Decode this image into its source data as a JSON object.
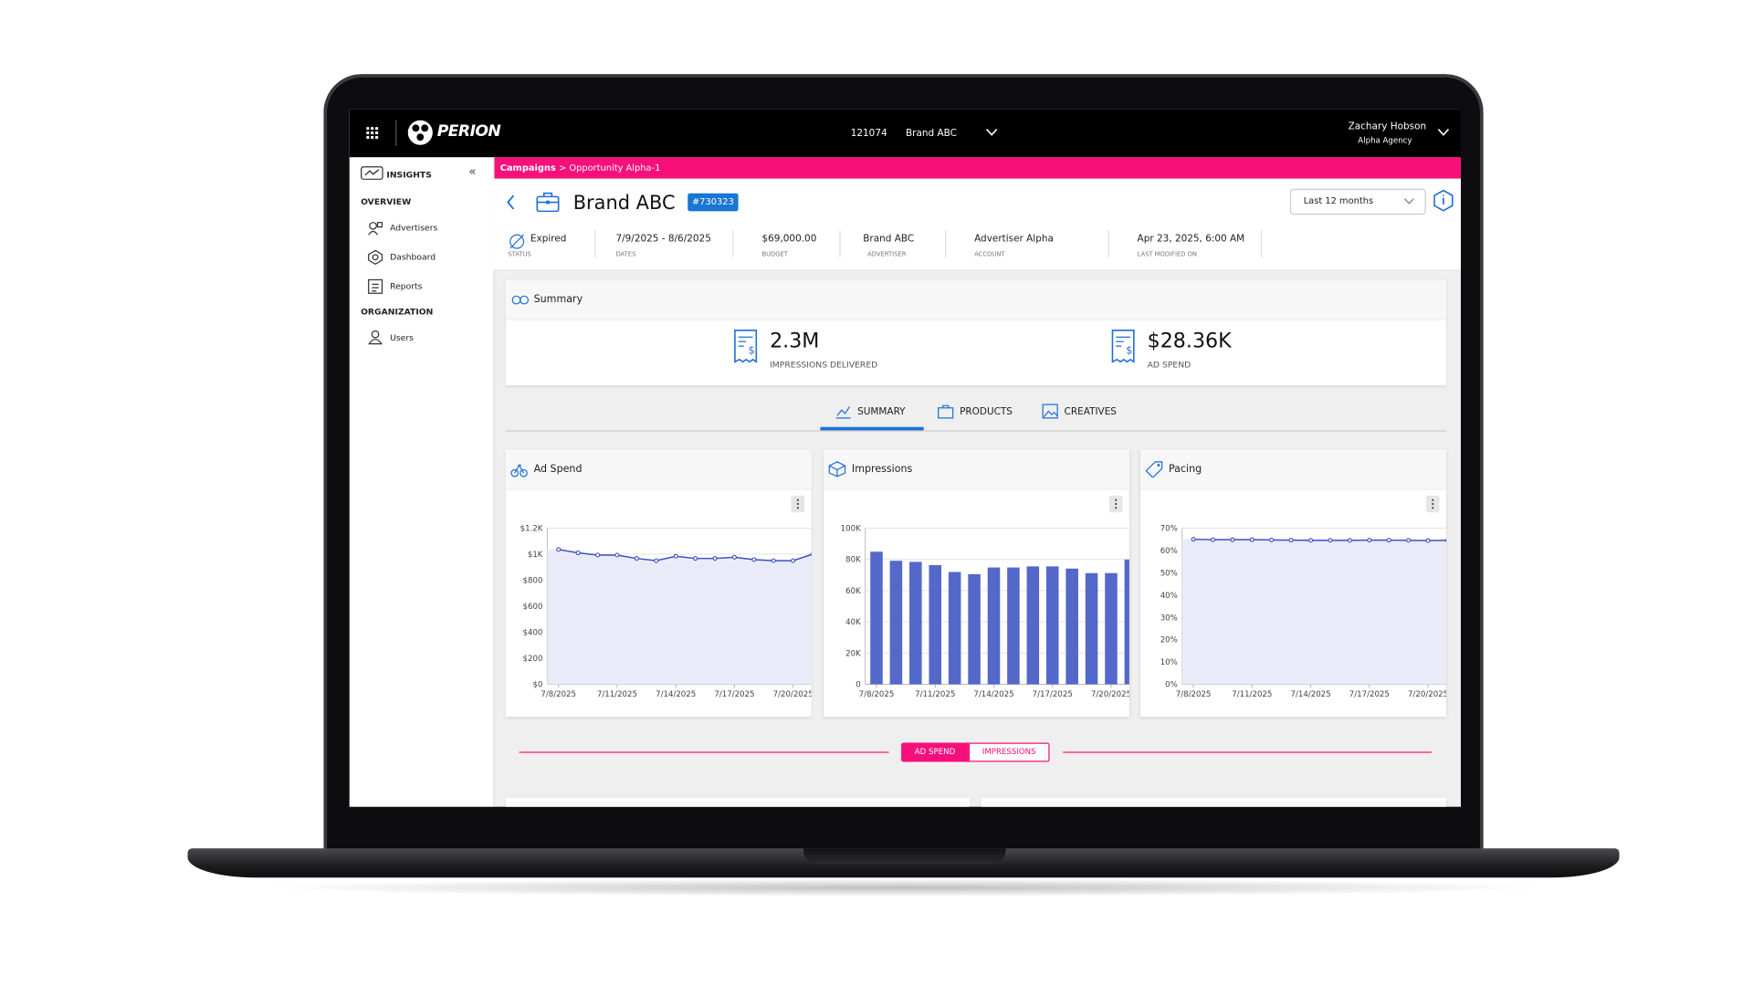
{
  "topbar": {
    "brand": "PERION",
    "account_id": "121074",
    "account_name": "Brand ABC",
    "user_name": "Zachary Hobson",
    "user_org": "Alpha Agency"
  },
  "breadcrumb": {
    "root": "Campaigns",
    "current": "> Opportunity Alpha-1"
  },
  "sidebar": {
    "title": "INSIGHTS",
    "sections": [
      {
        "heading": "OVERVIEW",
        "items": [
          "Advertisers",
          "Dashboard",
          "Reports"
        ]
      },
      {
        "heading": "ORGANIZATION",
        "items": [
          "Users"
        ]
      }
    ]
  },
  "header": {
    "title": "Brand ABC",
    "id_badge": "#730323",
    "date_range": "Last 12 months"
  },
  "details": [
    {
      "value": "Expired",
      "label": "STATUS"
    },
    {
      "value": "7/9/2025 - 8/6/2025",
      "label": "DATES"
    },
    {
      "value": "$69,000.00",
      "label": "BUDGET"
    },
    {
      "value": "Brand ABC",
      "label": "ADVERTISER"
    },
    {
      "value": "Advertiser Alpha",
      "label": "ACCOUNT"
    },
    {
      "value": "Apr 23, 2025, 6:00 AM",
      "label": "LAST MODIFIED ON"
    }
  ],
  "summary": {
    "title": "Summary",
    "kpis": [
      {
        "value": "2.3M",
        "label": "IMPRESSIONS DELIVERED"
      },
      {
        "value": "$28.36K",
        "label": "AD SPEND"
      }
    ]
  },
  "tabs": [
    "SUMMARY",
    "PRODUCTS",
    "CREATIVES"
  ],
  "chart_data": [
    {
      "type": "line",
      "title": "Ad Spend",
      "color": "#3a4fc0",
      "fill": "#e9ecf8",
      "grid": true,
      "categories": [
        "7/8/2025",
        null,
        null,
        "7/11/2025",
        null,
        null,
        "7/14/2025",
        null,
        null,
        "7/17/2025",
        null,
        null,
        "7/20/2025",
        null
      ],
      "values": [
        1036,
        1010,
        993,
        993,
        967,
        950,
        984,
        967,
        967,
        976,
        958,
        950,
        950,
        1000
      ],
      "ylim": [
        0,
        1200
      ],
      "yticks": [
        {
          "value": 0,
          "label": "$0"
        },
        {
          "value": 200,
          "label": "$200"
        },
        {
          "value": 400,
          "label": "$400"
        },
        {
          "value": 600,
          "label": "$600"
        },
        {
          "value": 800,
          "label": "$800"
        },
        {
          "value": 1000,
          "label": "$1K"
        },
        {
          "value": 1200,
          "label": "$1.2K"
        }
      ]
    },
    {
      "type": "bar",
      "title": "Impressions",
      "color": "#5468c9",
      "grid": true,
      "categories": [
        "7/8/2025",
        null,
        null,
        "7/11/2025",
        null,
        null,
        "7/14/2025",
        null,
        null,
        "7/17/2025",
        null,
        null,
        "7/20/2025",
        null
      ],
      "values": [
        84900,
        79100,
        78400,
        76300,
        71900,
        70500,
        74800,
        74800,
        75500,
        75500,
        74100,
        71200,
        71200,
        79900
      ],
      "ylim": [
        0,
        100000
      ],
      "yticks": [
        0,
        {
          "value": 20000,
          "label": "20K"
        },
        {
          "value": 40000,
          "label": "40K"
        },
        {
          "value": 60000,
          "label": "60K"
        },
        {
          "value": 80000,
          "label": "80K"
        },
        {
          "value": 100000,
          "label": "100K"
        }
      ]
    },
    {
      "type": "line",
      "title": "Pacing",
      "color": "#3a4fc0",
      "fill": "#e9ecf8",
      "grid": true,
      "categories": [
        "7/8/2025",
        null,
        null,
        "7/11/2025",
        null,
        null,
        "7/14/2025",
        null,
        null,
        "7/17/2025",
        null,
        null,
        "7/20/2025",
        null
      ],
      "values": [
        65.0,
        64.8,
        64.8,
        64.8,
        64.7,
        64.6,
        64.5,
        64.5,
        64.5,
        64.6,
        64.6,
        64.5,
        64.4,
        64.5
      ],
      "ylim": [
        0,
        70
      ],
      "yticks": [
        {
          "value": 0,
          "label": "0%"
        },
        {
          "value": 10,
          "label": "10%"
        },
        {
          "value": 20,
          "label": "20%"
        },
        {
          "value": 30,
          "label": "30%"
        },
        {
          "value": 40,
          "label": "40%"
        },
        {
          "value": 50,
          "label": "50%"
        },
        {
          "value": 60,
          "label": "60%"
        },
        {
          "value": 70,
          "label": "70%"
        }
      ]
    }
  ],
  "toggle": [
    "AD SPEND",
    "IMPRESSIONS"
  ]
}
